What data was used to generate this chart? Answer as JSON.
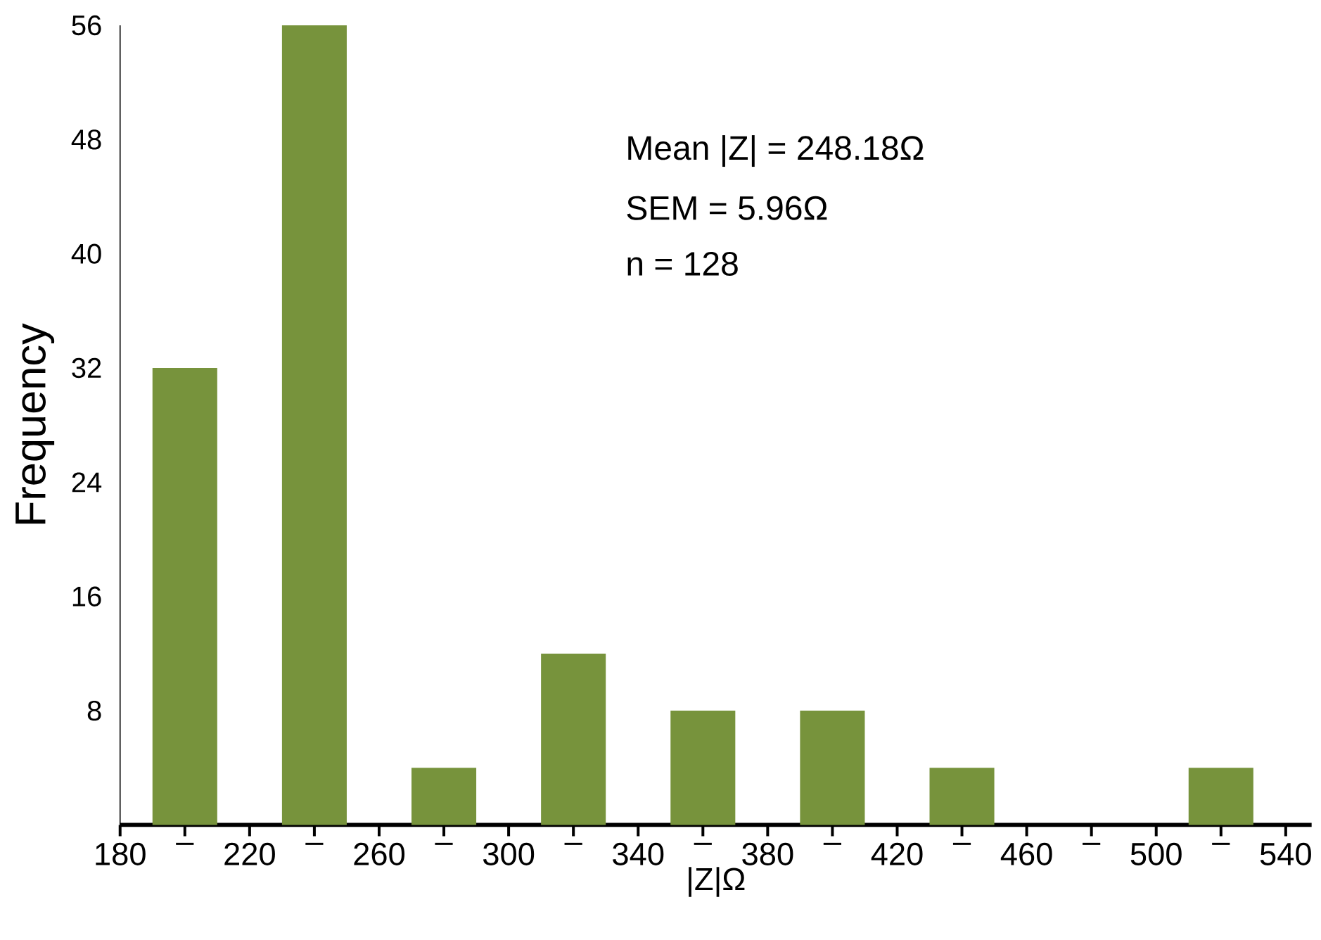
{
  "chart_data": {
    "type": "histogram",
    "xlabel": "|Z|Ω",
    "ylabel": "Frequency",
    "bins": [
      180,
      220,
      260,
      300,
      340,
      380,
      420,
      460,
      500,
      540
    ],
    "values": [
      32,
      56,
      4,
      12,
      8,
      8,
      4,
      0,
      4
    ],
    "color": "#77933c",
    "xlim": [
      180,
      548
    ],
    "ylim": [
      0,
      56
    ],
    "xticks": [
      180,
      {
        "value": 200,
        "label": "–"
      },
      220,
      {
        "value": 240,
        "label": "–"
      },
      260,
      {
        "value": 280,
        "label": "–"
      },
      300,
      {
        "value": 320,
        "label": "–"
      },
      340,
      {
        "value": 360,
        "label": "–"
      },
      380,
      {
        "value": 400,
        "label": "–"
      },
      420,
      {
        "value": 440,
        "label": "–"
      },
      460,
      {
        "value": 480,
        "label": "–"
      },
      500,
      {
        "value": 520,
        "label": "–"
      },
      540
    ],
    "yticks": [
      8,
      16,
      24,
      32,
      40,
      48,
      56
    ],
    "annotations": [
      "Mean |Z| = 248.18Ω",
      "SEM = 5.96Ω",
      "n = 128"
    ]
  }
}
